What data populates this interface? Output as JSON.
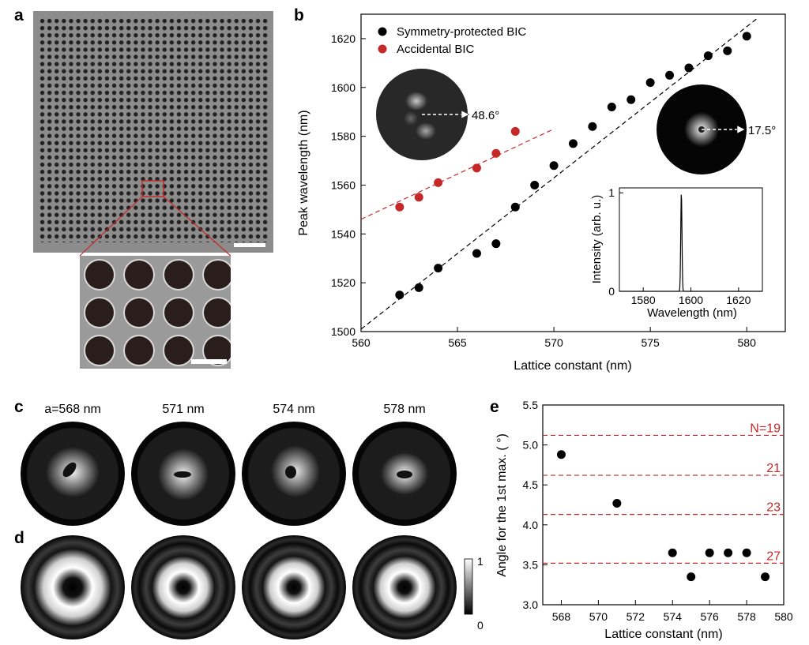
{
  "panels": {
    "a": "a",
    "b": "b",
    "c": "c",
    "d": "d",
    "e": "e"
  },
  "colors": {
    "black": "#000000",
    "red": "#c62828",
    "sem_background": "#8c8c8c",
    "sem_hole": "#2a1e1c"
  },
  "panel_c_titles": [
    "a=568 nm",
    "571 nm",
    "574 nm",
    "578 nm"
  ],
  "colorbar": {
    "max": "1",
    "min": "0"
  },
  "inset_angles": {
    "accidental": "48.6°",
    "symmetry": "17.5°"
  },
  "chart_data": [
    {
      "id": "b",
      "type": "scatter",
      "xlabel": "Lattice constant (nm)",
      "ylabel": "Peak wavelength (nm)",
      "xlim": [
        560,
        582
      ],
      "ylim": [
        1500,
        1630
      ],
      "xticks": [
        560,
        565,
        570,
        575,
        580
      ],
      "yticks": [
        1500,
        1520,
        1540,
        1560,
        1580,
        1600,
        1620
      ],
      "legend_position": "top-left",
      "series": [
        {
          "name": "Symmetry-protected BIC",
          "color": "#000000",
          "x": [
            562,
            563,
            564,
            566,
            567,
            568,
            569,
            570,
            571,
            572,
            573,
            574,
            575,
            576,
            577,
            578,
            579,
            580
          ],
          "y": [
            1515,
            1518,
            1526,
            1532,
            1536,
            1551,
            1560,
            1568,
            1577,
            1584,
            1592,
            1595,
            1602,
            1605,
            1608,
            1613,
            1615,
            1621
          ],
          "fit": {
            "x": [
              560,
              580.5
            ],
            "y": [
              1501,
              1628
            ]
          }
        },
        {
          "name": "Accidental BIC",
          "color": "#c62828",
          "x": [
            562,
            563,
            564,
            566,
            567,
            568
          ],
          "y": [
            1551,
            1555,
            1561,
            1567,
            1573,
            1582
          ],
          "fit": {
            "x": [
              560,
              570
            ],
            "y": [
              1546,
              1583
            ]
          }
        }
      ]
    },
    {
      "id": "b-inset",
      "type": "line",
      "xlabel": "Wavelength (nm)",
      "ylabel": "Intensity (arb. u.)",
      "xlim": [
        1570,
        1630
      ],
      "ylim": [
        0,
        1.05
      ],
      "xticks": [
        1580,
        1600,
        1620
      ],
      "yticks": [
        0,
        1
      ],
      "peak": {
        "x": 1596,
        "y": 1.0,
        "fwhm": 0.6
      }
    },
    {
      "id": "e",
      "type": "scatter",
      "xlabel": "Lattice constant (nm)",
      "ylabel": "Angle for the 1st max. ( °)",
      "xlim": [
        567,
        580
      ],
      "ylim": [
        3.0,
        5.5
      ],
      "xticks": [
        568,
        570,
        572,
        574,
        576,
        578,
        580
      ],
      "yticks": [
        "3.0",
        "3.5",
        "4.0",
        "4.5",
        "5.0",
        "5.5"
      ],
      "x": [
        568,
        571,
        574,
        575,
        576,
        577,
        578,
        579
      ],
      "y": [
        4.88,
        4.27,
        3.65,
        3.35,
        3.65,
        3.65,
        3.65,
        3.35
      ],
      "reference_lines": [
        {
          "label": "N=19",
          "y": 5.12
        },
        {
          "label": "21",
          "y": 4.62
        },
        {
          "label": "23",
          "y": 4.13
        },
        {
          "label": "27",
          "y": 3.52
        }
      ]
    }
  ]
}
